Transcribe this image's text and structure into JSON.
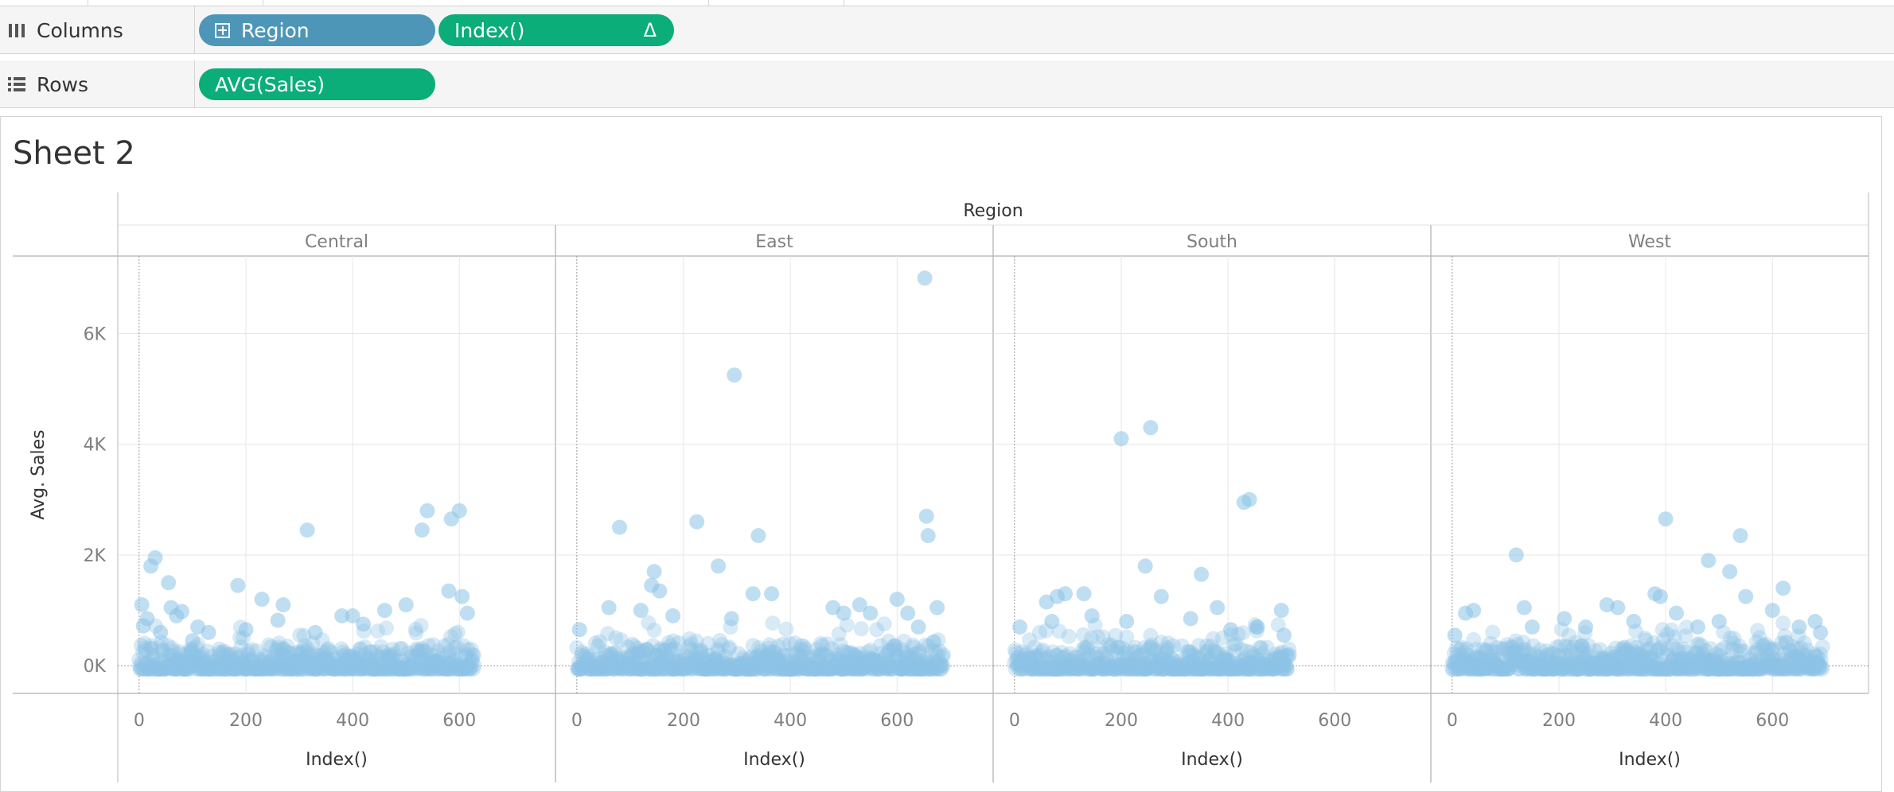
{
  "shelves": {
    "columns": {
      "label": "Columns",
      "pills": [
        {
          "label": "Region"
        },
        {
          "label": "Index()",
          "marker": "Δ"
        }
      ]
    },
    "rows": {
      "label": "Rows",
      "pills": [
        {
          "label": "AVG(Sales)"
        }
      ]
    }
  },
  "colors": {
    "mark": "#8dc2e6",
    "pill_dimension": "#4d96b8",
    "pill_measure": "#0bad78",
    "shelf_bg": "#f5f5f5",
    "grid": "#e6e6e6",
    "axis_text": "#7f7f7f"
  },
  "worksheet": {
    "title": "Sheet 2"
  },
  "chart_data": {
    "type": "scatter",
    "title": "Sheet 2",
    "column_header": "Region",
    "xlabel": "Index()",
    "ylabel": "Avg. Sales",
    "xlim": [
      -40,
      780
    ],
    "ylim": [
      -500,
      7400
    ],
    "x_ticks": [
      0,
      200,
      400,
      600
    ],
    "x_tick_labels": [
      "0",
      "200",
      "400",
      "600"
    ],
    "y_ticks": [
      0,
      2000,
      4000,
      6000
    ],
    "y_tick_labels": [
      "0K",
      "2K",
      "4K",
      "6K"
    ],
    "grid": true,
    "mark": "circle",
    "panels": [
      {
        "region": "Central",
        "count": 629,
        "points": [
          [
            5,
            1100
          ],
          [
            8,
            720
          ],
          [
            15,
            850
          ],
          [
            22,
            1800
          ],
          [
            30,
            1950
          ],
          [
            40,
            600
          ],
          [
            55,
            1500
          ],
          [
            60,
            1050
          ],
          [
            70,
            900
          ],
          [
            80,
            980
          ],
          [
            100,
            450
          ],
          [
            110,
            700
          ],
          [
            130,
            600
          ],
          [
            185,
            1450
          ],
          [
            200,
            650
          ],
          [
            230,
            1200
          ],
          [
            260,
            820
          ],
          [
            270,
            1100
          ],
          [
            315,
            2450
          ],
          [
            330,
            600
          ],
          [
            380,
            900
          ],
          [
            400,
            900
          ],
          [
            420,
            750
          ],
          [
            460,
            1000
          ],
          [
            500,
            1100
          ],
          [
            530,
            2450
          ],
          [
            540,
            2800
          ],
          [
            580,
            1350
          ],
          [
            585,
            2650
          ],
          [
            600,
            2800
          ],
          [
            605,
            1250
          ],
          [
            615,
            950
          ]
        ]
      },
      {
        "region": "East",
        "count": 688,
        "points": [
          [
            5,
            650
          ],
          [
            60,
            1050
          ],
          [
            80,
            2500
          ],
          [
            120,
            1000
          ],
          [
            140,
            1450
          ],
          [
            145,
            1700
          ],
          [
            155,
            1350
          ],
          [
            180,
            900
          ],
          [
            225,
            2600
          ],
          [
            265,
            1800
          ],
          [
            290,
            850
          ],
          [
            295,
            5250
          ],
          [
            330,
            1300
          ],
          [
            340,
            2350
          ],
          [
            365,
            1300
          ],
          [
            480,
            1050
          ],
          [
            500,
            950
          ],
          [
            530,
            1100
          ],
          [
            550,
            950
          ],
          [
            600,
            1200
          ],
          [
            620,
            950
          ],
          [
            640,
            700
          ],
          [
            652,
            7000
          ],
          [
            655,
            2700
          ],
          [
            658,
            2350
          ],
          [
            675,
            1050
          ]
        ]
      },
      {
        "region": "South",
        "count": 516,
        "points": [
          [
            10,
            700
          ],
          [
            60,
            1150
          ],
          [
            70,
            800
          ],
          [
            80,
            1250
          ],
          [
            95,
            1300
          ],
          [
            130,
            1300
          ],
          [
            145,
            900
          ],
          [
            200,
            4100
          ],
          [
            210,
            800
          ],
          [
            245,
            1800
          ],
          [
            255,
            4300
          ],
          [
            275,
            1250
          ],
          [
            330,
            850
          ],
          [
            350,
            1650
          ],
          [
            380,
            1050
          ],
          [
            405,
            650
          ],
          [
            430,
            2950
          ],
          [
            440,
            3000
          ],
          [
            455,
            700
          ],
          [
            500,
            1000
          ],
          [
            505,
            550
          ]
        ]
      },
      {
        "region": "West",
        "count": 695,
        "points": [
          [
            5,
            550
          ],
          [
            25,
            950
          ],
          [
            40,
            1000
          ],
          [
            120,
            2000
          ],
          [
            135,
            1050
          ],
          [
            150,
            700
          ],
          [
            210,
            850
          ],
          [
            250,
            700
          ],
          [
            290,
            1100
          ],
          [
            310,
            1050
          ],
          [
            340,
            800
          ],
          [
            380,
            1300
          ],
          [
            390,
            1250
          ],
          [
            400,
            2650
          ],
          [
            420,
            950
          ],
          [
            460,
            700
          ],
          [
            480,
            1900
          ],
          [
            500,
            800
          ],
          [
            520,
            1700
          ],
          [
            540,
            2350
          ],
          [
            550,
            1250
          ],
          [
            600,
            1000
          ],
          [
            620,
            1400
          ],
          [
            650,
            700
          ],
          [
            680,
            800
          ],
          [
            690,
            600
          ]
        ]
      }
    ]
  }
}
